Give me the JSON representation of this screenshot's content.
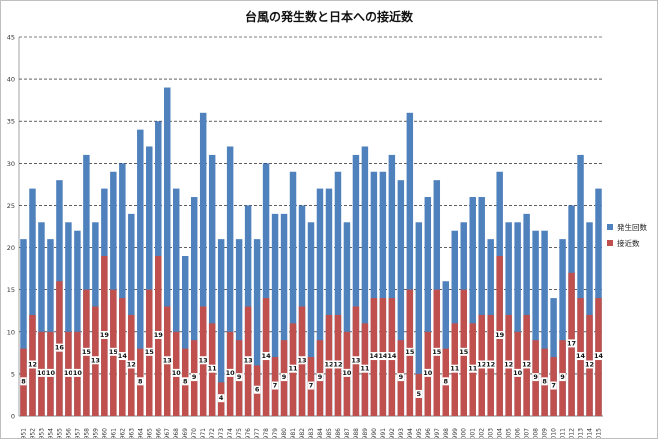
{
  "chart_data": {
    "type": "bar",
    "title": "台風の発生数と日本への接近数",
    "xlabel": "",
    "ylabel": "",
    "ylim": [
      0,
      45
    ],
    "yticks": [
      0,
      5,
      10,
      15,
      20,
      25,
      30,
      35,
      40,
      45
    ],
    "grid": "horizontal dashed",
    "legend_position": "right",
    "colors": {
      "発生回数": "#4f81bd",
      "接近数": "#c0504d"
    },
    "categories": [
      "1951",
      "1952",
      "1953",
      "1954",
      "1955",
      "1956",
      "1957",
      "1958",
      "1959",
      "1960",
      "1961",
      "1962",
      "1963",
      "1964",
      "1965",
      "1966",
      "1967",
      "1968",
      "1969",
      "1970",
      "1971",
      "1972",
      "1973",
      "1974",
      "1975",
      "1976",
      "1977",
      "1978",
      "1979",
      "1980",
      "1981",
      "1982",
      "1983",
      "1984",
      "1985",
      "1986",
      "1987",
      "1988",
      "1989",
      "1990",
      "1991",
      "1992",
      "1993",
      "1994",
      "1995",
      "1996",
      "1997",
      "1998",
      "1999",
      "2000",
      "2001",
      "2002",
      "2003",
      "2004",
      "2005",
      "2006",
      "2007",
      "2008",
      "2009",
      "2010",
      "2011",
      "2012",
      "2013",
      "2014",
      "2015"
    ],
    "series": [
      {
        "name": "発生回数",
        "values": [
          21,
          27,
          23,
          21,
          28,
          23,
          22,
          31,
          23,
          27,
          29,
          30,
          24,
          34,
          32,
          35,
          39,
          27,
          19,
          26,
          36,
          31,
          21,
          32,
          21,
          25,
          21,
          30,
          24,
          24,
          29,
          25,
          23,
          27,
          27,
          29,
          23,
          31,
          32,
          29,
          29,
          31,
          28,
          36,
          23,
          26,
          28,
          16,
          22,
          23,
          26,
          26,
          21,
          29,
          23,
          23,
          24,
          22,
          22,
          14,
          21,
          25,
          31,
          23,
          27
        ]
      },
      {
        "name": "接近数",
        "values": [
          8,
          12,
          10,
          10,
          16,
          10,
          10,
          15,
          13,
          19,
          15,
          14,
          12,
          8,
          15,
          19,
          13,
          10,
          8,
          9,
          13,
          11,
          4,
          10,
          9,
          13,
          6,
          14,
          7,
          9,
          11,
          13,
          7,
          9,
          12,
          12,
          10,
          13,
          11,
          14,
          14,
          14,
          9,
          15,
          5,
          10,
          15,
          8,
          11,
          15,
          11,
          12,
          12,
          19,
          12,
          10,
          12,
          9,
          8,
          7,
          9,
          17,
          14,
          12,
          14
        ]
      }
    ]
  }
}
